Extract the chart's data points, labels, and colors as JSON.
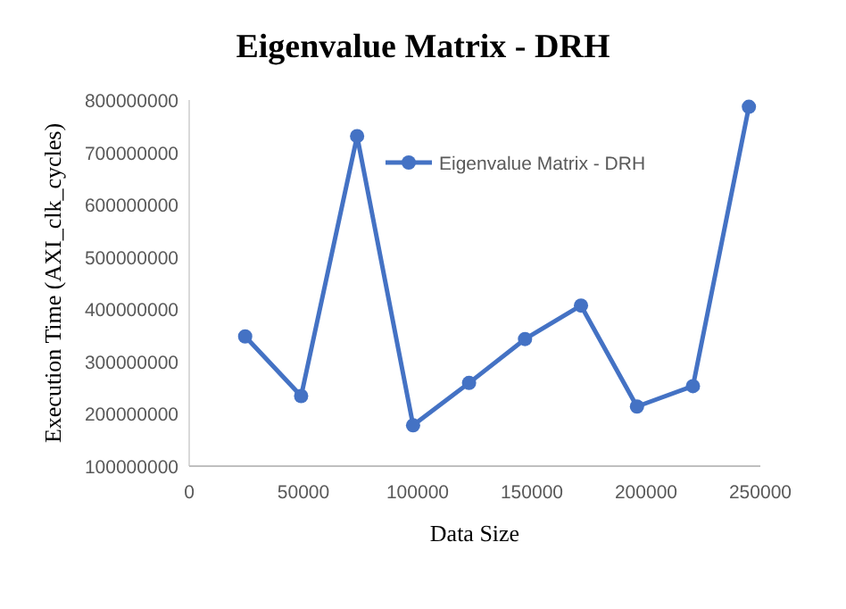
{
  "chart_data": {
    "type": "line",
    "title": "Eigenvalue Matrix - DRH",
    "xlabel": "Data Size",
    "ylabel": "Execution Time (AXI_clk_cycles)",
    "x": [
      24500,
      49000,
      73500,
      98000,
      122500,
      147000,
      171500,
      196000,
      220500,
      245000
    ],
    "series": [
      {
        "name": "Eigenvalue Matrix - DRH",
        "color": "#4472c4",
        "values": [
          348000000,
          234000000,
          731000000,
          178000000,
          259000000,
          343000000,
          407000000,
          214000000,
          253000000,
          787000000
        ]
      }
    ],
    "xlim": [
      0,
      250000
    ],
    "xticks": [
      0,
      50000,
      100000,
      150000,
      200000,
      250000
    ],
    "ylim": [
      100000000,
      800000000
    ],
    "yticks": [
      100000000,
      200000000,
      300000000,
      400000000,
      500000000,
      600000000,
      700000000,
      800000000
    ],
    "grid": false,
    "legend": "top right",
    "marker": "circle",
    "line_style": "solid"
  }
}
